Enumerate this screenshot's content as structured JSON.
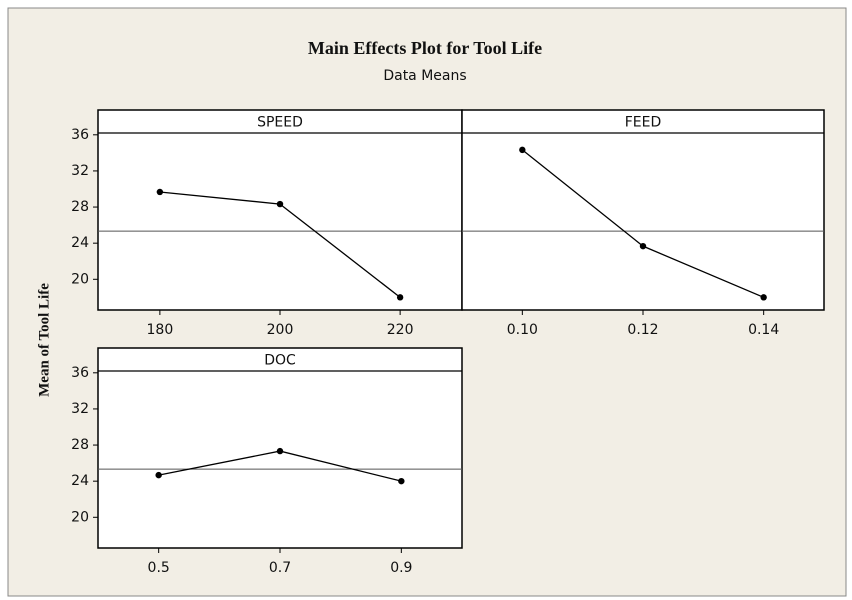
{
  "title": "Main Effects Plot for Tool Life",
  "subtitle": "Data Means",
  "ylabel": "Mean of Tool Life",
  "ylim": [
    16.6,
    36.2
  ],
  "yticks": [
    20,
    24,
    28,
    32,
    36
  ],
  "grand_mean": 25.33,
  "chart_data": [
    {
      "type": "line",
      "title": "SPEED",
      "x": [
        180,
        200,
        220
      ],
      "values": [
        29.67,
        28.33,
        18
      ],
      "xlim": [
        169.7,
        230.3
      ],
      "xticks": [
        180,
        200,
        220
      ],
      "color": "#000000"
    },
    {
      "type": "line",
      "title": "FEED",
      "x": [
        0.1,
        0.12,
        0.14
      ],
      "values": [
        34.33,
        23.67,
        18
      ],
      "xlim": [
        0.09,
        0.15
      ],
      "xticks": [
        {
          "value": 0.1,
          "label": "0.10"
        },
        {
          "value": 0.12,
          "label": "0.12"
        },
        {
          "value": 0.14,
          "label": "0.14"
        }
      ],
      "color": "#000000"
    },
    {
      "type": "line",
      "title": "DOC",
      "x": [
        0.5,
        0.7,
        0.9
      ],
      "values": [
        24.67,
        27.33,
        24
      ],
      "xlim": [
        0.4,
        1.0
      ],
      "xticks": [
        0.5,
        0.7,
        0.9
      ],
      "color": "#000000"
    }
  ]
}
